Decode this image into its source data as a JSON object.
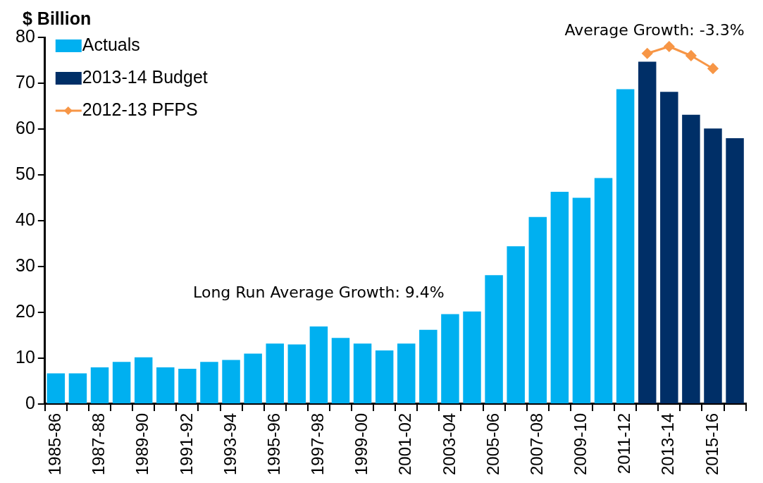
{
  "chart_data": {
    "type": "bar",
    "ylabel": "$ Billion",
    "categories": [
      "1985-86",
      null,
      "1987-88",
      null,
      "1989-90",
      null,
      "1991-92",
      null,
      "1993-94",
      null,
      "1995-96",
      null,
      "1997-98",
      null,
      "1999-00",
      null,
      "2001-02",
      null,
      "2003-04",
      null,
      "2005-06",
      null,
      "2007-08",
      null,
      "2009-10",
      null,
      "2011-12",
      null,
      "2013-14",
      null,
      "2015-16",
      null
    ],
    "series": [
      {
        "name": "Actuals",
        "color": "#00b0f0",
        "values": [
          6.7,
          6.7,
          8,
          9.2,
          10.2,
          8,
          7.7,
          9.2,
          9.6,
          11,
          13.2,
          13,
          16.9,
          14.4,
          13.2,
          11.7,
          13.2,
          16.2,
          19.6,
          20.2,
          28.1,
          34.4,
          40.8,
          46.3,
          45,
          49.3,
          68.7,
          null,
          null,
          null,
          null,
          null
        ]
      },
      {
        "name": "2013-14 Budget",
        "color": "#002f67",
        "values": [
          null,
          null,
          null,
          null,
          null,
          null,
          null,
          null,
          null,
          null,
          null,
          null,
          null,
          null,
          null,
          null,
          null,
          null,
          null,
          null,
          null,
          null,
          null,
          null,
          null,
          null,
          null,
          74.7,
          68.1,
          63.1,
          60.1,
          58
        ]
      },
      {
        "name": "2012-13 PFPS",
        "type": "line",
        "color": "#f79646",
        "marker": "diamond",
        "values": [
          null,
          null,
          null,
          null,
          null,
          null,
          null,
          null,
          null,
          null,
          null,
          null,
          null,
          null,
          null,
          null,
          null,
          null,
          null,
          null,
          null,
          null,
          null,
          null,
          null,
          null,
          null,
          76.5,
          78,
          76,
          73.2,
          null
        ]
      }
    ],
    "ylim": [
      0,
      80
    ],
    "yticks": [
      0,
      10,
      20,
      30,
      40,
      50,
      60,
      70,
      80
    ],
    "grid": false,
    "legend": "top left",
    "annotations": [
      "Long Run Average Growth: 9.4%",
      "Average Growth: -3.3%"
    ]
  }
}
